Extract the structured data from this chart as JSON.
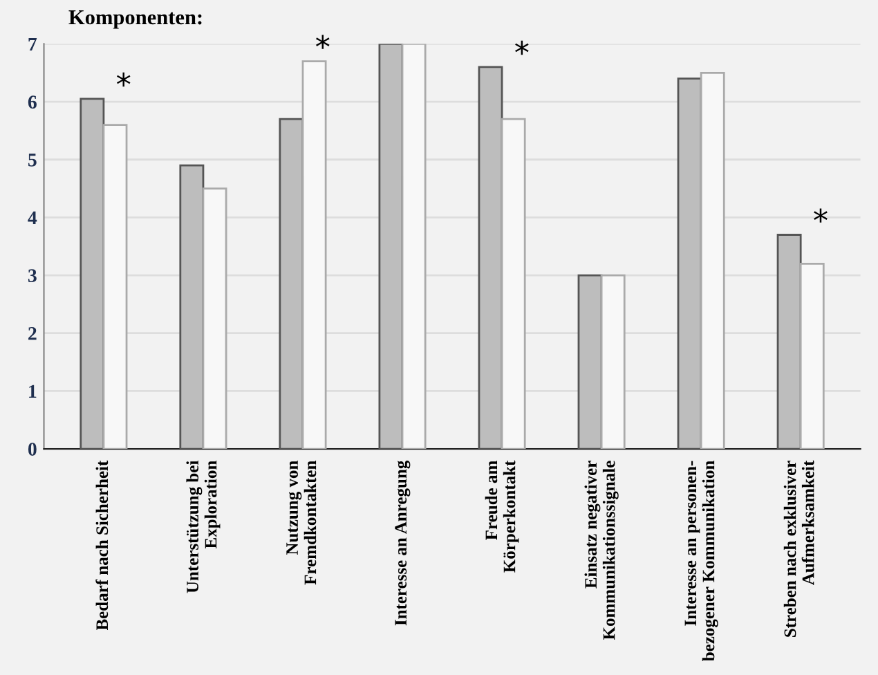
{
  "chart_data": {
    "type": "bar",
    "title": "Komponenten:",
    "categories": [
      "Bedarf nach Sicherheit",
      "Unterstützung bei\nExploration",
      "Nutzung von\nFremdkontakten",
      "Interesse an Anregung",
      "Freude am\nKörperkontakt",
      "Einsatz negativer\nKommunikationssignale",
      "Interesse an personen-\nbezogener Kommunikation",
      "Streben nach exklusiver\nAufmerksamkeit"
    ],
    "series": [
      {
        "color": "#bdbdbd",
        "values": [
          6.05,
          4.9,
          5.7,
          7.0,
          6.6,
          3.0,
          6.4,
          3.7
        ]
      },
      {
        "color": "#f8f8f8",
        "values": [
          5.6,
          4.5,
          6.7,
          7.0,
          5.7,
          3.0,
          6.5,
          3.2
        ]
      }
    ],
    "ylim": [
      0,
      7
    ],
    "yticks": [
      0,
      1,
      2,
      3,
      4,
      5,
      6,
      7
    ],
    "grid": "y",
    "legend": false,
    "annotations": [
      {
        "text": "*",
        "x": "Bedarf nach Sicherheit",
        "y": 6.05
      },
      {
        "text": "*",
        "x": "Nutzung von\nFremdkontakten",
        "y": 6.7
      },
      {
        "text": "*",
        "x": "Freude am\nKörperkontakt",
        "y": 6.6
      },
      {
        "text": "*",
        "x": "Streben nach exklusiver\nAufmerksamkeit",
        "y": 3.7
      }
    ]
  }
}
